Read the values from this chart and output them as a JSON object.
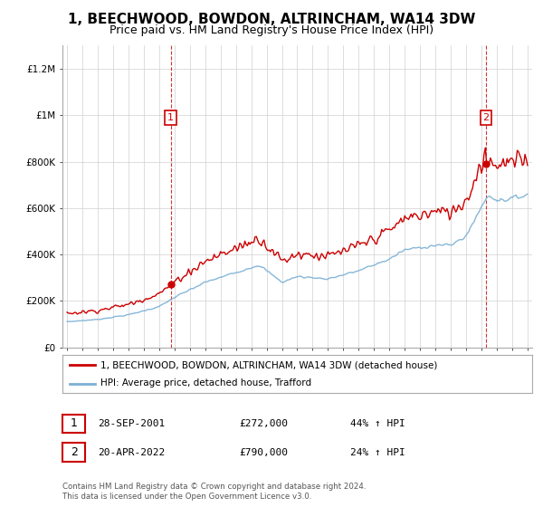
{
  "title": "1, BEECHWOOD, BOWDON, ALTRINCHAM, WA14 3DW",
  "subtitle": "Price paid vs. HM Land Registry's House Price Index (HPI)",
  "title_fontsize": 11,
  "subtitle_fontsize": 9,
  "background_color": "#ffffff",
  "grid_color": "#d0d0d0",
  "property_color": "#cc0000",
  "hpi_color": "#7ab0d4",
  "purchase1_year": 2001.75,
  "purchase1_price": 272000,
  "purchase2_year": 2022.3,
  "purchase2_price": 790000,
  "ylim": [
    0,
    1300000
  ],
  "yticks": [
    0,
    200000,
    400000,
    600000,
    800000,
    1000000,
    1200000
  ],
  "legend_entry1": "1, BEECHWOOD, BOWDON, ALTRINCHAM, WA14 3DW (detached house)",
  "legend_entry2": "HPI: Average price, detached house, Trafford",
  "table_rows": [
    {
      "num": "1",
      "date": "28-SEP-2001",
      "price": "£272,000",
      "change": "44% ↑ HPI"
    },
    {
      "num": "2",
      "date": "20-APR-2022",
      "price": "£790,000",
      "change": "24% ↑ HPI"
    }
  ],
  "footnote": "Contains HM Land Registry data © Crown copyright and database right 2024.\nThis data is licensed under the Open Government Licence v3.0."
}
